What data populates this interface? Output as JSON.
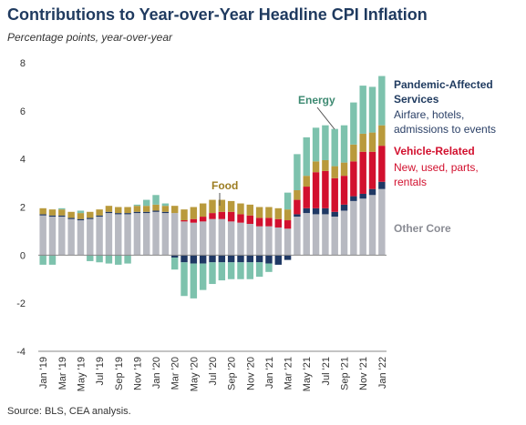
{
  "title": "Contributions to Year-over-Year Headline CPI Inflation",
  "subtitle": "Percentage points, year-over-year",
  "source": "Source: BLS, CEA analysis.",
  "colors": {
    "other_core": "#b7b9c1",
    "pandemic": "#1f3864",
    "vehicle": "#d2102e",
    "food": "#b99a3c",
    "energy": "#7dc2ad",
    "title": "#1f3a5f"
  },
  "annotations": {
    "energy": "Energy",
    "food": "Food",
    "pandemic_title_1": "Pandemic-Affected",
    "pandemic_title_2": "Services",
    "pandemic_desc_1": "Airfare, hotels,",
    "pandemic_desc_2": "admissions to events",
    "vehicle_title": "Vehicle-Related",
    "vehicle_desc_1": "New, used, parts,",
    "vehicle_desc_2": "rentals",
    "other_core": "Other Core"
  },
  "chart_data": {
    "type": "bar",
    "stacked": true,
    "ylim": [
      -4,
      8
    ],
    "yticks": [
      -4,
      -2,
      0,
      2,
      4,
      6,
      8
    ],
    "grid": false,
    "categories": [
      "Jan '19",
      "Feb '19",
      "Mar '19",
      "Apr '19",
      "May '19",
      "Jun '19",
      "Jul '19",
      "Aug '19",
      "Sep '19",
      "Oct '19",
      "Nov '19",
      "Dec '19",
      "Jan '20",
      "Feb '20",
      "Mar '20",
      "Apr '20",
      "May '20",
      "Jun '20",
      "Jul '20",
      "Aug '20",
      "Sep '20",
      "Oct '20",
      "Nov '20",
      "Dec '20",
      "Jan '21",
      "Feb '21",
      "Mar '21",
      "Apr '21",
      "May '21",
      "Jun '21",
      "Jul '21",
      "Aug '21",
      "Sep '21",
      "Oct '21",
      "Nov '21",
      "Dec '21",
      "Jan '22"
    ],
    "tick_labels": [
      "Jan '19",
      "Mar '19",
      "May '19",
      "Jul '19",
      "Sep '19",
      "Nov '19",
      "Jan '20",
      "Mar '20",
      "May '20",
      "Jul '20",
      "Sep '20",
      "Nov '20",
      "Jan '21",
      "Mar '21",
      "May '21",
      "Jul '21",
      "Sep '21",
      "Nov '21",
      "Jan '22"
    ],
    "series": [
      {
        "name": "Other Core",
        "color_key": "other_core",
        "values": [
          1.65,
          1.6,
          1.6,
          1.5,
          1.45,
          1.5,
          1.6,
          1.75,
          1.7,
          1.7,
          1.75,
          1.75,
          1.8,
          1.75,
          1.75,
          1.4,
          1.35,
          1.4,
          1.5,
          1.5,
          1.4,
          1.35,
          1.3,
          1.2,
          1.2,
          1.15,
          1.1,
          1.6,
          1.75,
          1.7,
          1.7,
          1.6,
          1.85,
          2.25,
          2.35,
          2.5,
          2.75
        ]
      },
      {
        "name": "Pandemic-Affected Services",
        "color_key": "pandemic",
        "values": [
          0.05,
          0.05,
          0.05,
          0.05,
          0.05,
          0.05,
          0.05,
          0.05,
          0.05,
          0.05,
          0.05,
          0.05,
          0.05,
          0.05,
          -0.1,
          -0.3,
          -0.35,
          -0.35,
          -0.3,
          -0.3,
          -0.3,
          -0.3,
          -0.3,
          -0.3,
          -0.35,
          -0.4,
          -0.2,
          0.1,
          0.2,
          0.25,
          0.25,
          0.2,
          0.25,
          0.2,
          0.2,
          0.25,
          0.3
        ]
      },
      {
        "name": "Vehicle-Related",
        "color_key": "vehicle",
        "values": [
          0.0,
          0.0,
          0.0,
          0.0,
          0.0,
          0.0,
          0.0,
          0.0,
          0.0,
          0.0,
          0.0,
          0.0,
          0.0,
          0.0,
          0.0,
          0.05,
          0.15,
          0.2,
          0.25,
          0.3,
          0.4,
          0.35,
          0.35,
          0.35,
          0.35,
          0.35,
          0.35,
          0.6,
          0.9,
          1.5,
          1.55,
          1.4,
          1.2,
          1.45,
          1.75,
          1.55,
          1.5
        ]
      },
      {
        "name": "Food",
        "color_key": "food",
        "values": [
          0.25,
          0.25,
          0.25,
          0.25,
          0.25,
          0.25,
          0.25,
          0.25,
          0.25,
          0.25,
          0.25,
          0.25,
          0.25,
          0.25,
          0.3,
          0.45,
          0.5,
          0.55,
          0.55,
          0.5,
          0.45,
          0.45,
          0.45,
          0.45,
          0.45,
          0.45,
          0.45,
          0.4,
          0.45,
          0.45,
          0.45,
          0.5,
          0.55,
          0.7,
          0.75,
          0.8,
          0.85
        ]
      },
      {
        "name": "Energy",
        "color_key": "energy",
        "values": [
          -0.4,
          -0.4,
          0.05,
          0.0,
          0.1,
          -0.25,
          -0.3,
          -0.35,
          -0.4,
          -0.35,
          0.05,
          0.25,
          0.4,
          0.1,
          -0.5,
          -1.4,
          -1.45,
          -1.1,
          -0.9,
          -0.75,
          -0.7,
          -0.7,
          -0.7,
          -0.6,
          -0.35,
          0.0,
          0.7,
          1.5,
          1.6,
          1.4,
          1.45,
          1.55,
          1.55,
          1.75,
          2.0,
          1.9,
          2.05
        ]
      }
    ]
  }
}
